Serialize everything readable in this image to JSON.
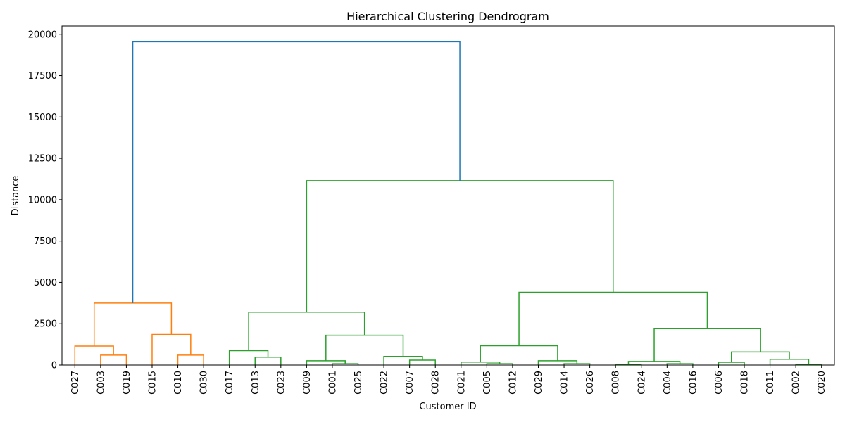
{
  "chart_data": {
    "type": "dendrogram",
    "title": "Hierarchical Clustering Dendrogram",
    "xlabel": "Customer ID",
    "ylabel": "Distance",
    "ylim": [
      0,
      20500
    ],
    "yticks": [
      0,
      2500,
      5000,
      7500,
      10000,
      12500,
      15000,
      17500,
      20000
    ],
    "grid": false,
    "leaves": [
      "C027",
      "C003",
      "C019",
      "C015",
      "C010",
      "C030",
      "C017",
      "C013",
      "C023",
      "C009",
      "C001",
      "C025",
      "C022",
      "C007",
      "C028",
      "C021",
      "C005",
      "C012",
      "C029",
      "C014",
      "C026",
      "C008",
      "C024",
      "C004",
      "C016",
      "C006",
      "C018",
      "C011",
      "C002",
      "C020"
    ],
    "colors": {
      "root": "#1f77b4",
      "cluster_1": "#ff7f0e",
      "cluster_2": "#2ca02c"
    },
    "links": [
      {
        "id": "m1",
        "left": "C003",
        "right": "C019",
        "height": 600,
        "color": "cluster_1"
      },
      {
        "id": "m2",
        "left": "C027",
        "right": "m1",
        "height": 1150,
        "color": "cluster_1"
      },
      {
        "id": "m3",
        "left": "C010",
        "right": "C030",
        "height": 600,
        "color": "cluster_1"
      },
      {
        "id": "m4",
        "left": "C015",
        "right": "m3",
        "height": 1850,
        "color": "cluster_1"
      },
      {
        "id": "m5",
        "left": "m2",
        "right": "m4",
        "height": 3750,
        "color": "cluster_1"
      },
      {
        "id": "m6",
        "left": "C013",
        "right": "C023",
        "height": 480,
        "color": "cluster_2"
      },
      {
        "id": "m7",
        "left": "C017",
        "right": "m6",
        "height": 870,
        "color": "cluster_2"
      },
      {
        "id": "m8",
        "left": "C001",
        "right": "C025",
        "height": 80,
        "color": "cluster_2"
      },
      {
        "id": "m9",
        "left": "C009",
        "right": "m8",
        "height": 260,
        "color": "cluster_2"
      },
      {
        "id": "m10",
        "left": "C007",
        "right": "C028",
        "height": 300,
        "color": "cluster_2"
      },
      {
        "id": "m11",
        "left": "C022",
        "right": "m10",
        "height": 520,
        "color": "cluster_2"
      },
      {
        "id": "m12",
        "left": "m9",
        "right": "m11",
        "height": 1800,
        "color": "cluster_2"
      },
      {
        "id": "m13",
        "left": "m7",
        "right": "m12",
        "height": 3200,
        "color": "cluster_2"
      },
      {
        "id": "m14",
        "left": "C005",
        "right": "C012",
        "height": 80,
        "color": "cluster_2"
      },
      {
        "id": "m15",
        "left": "C021",
        "right": "m14",
        "height": 180,
        "color": "cluster_2"
      },
      {
        "id": "m16",
        "left": "C014",
        "right": "C026",
        "height": 80,
        "color": "cluster_2"
      },
      {
        "id": "m17",
        "left": "C029",
        "right": "m16",
        "height": 260,
        "color": "cluster_2"
      },
      {
        "id": "m18",
        "left": "m15",
        "right": "m17",
        "height": 1170,
        "color": "cluster_2"
      },
      {
        "id": "m19",
        "left": "C008",
        "right": "C024",
        "height": 40,
        "color": "cluster_2"
      },
      {
        "id": "m20",
        "left": "C004",
        "right": "C016",
        "height": 80,
        "color": "cluster_2"
      },
      {
        "id": "m21",
        "left": "m19",
        "right": "m20",
        "height": 220,
        "color": "cluster_2"
      },
      {
        "id": "m22",
        "left": "C006",
        "right": "C018",
        "height": 170,
        "color": "cluster_2"
      },
      {
        "id": "m23",
        "left": "C002",
        "right": "C020",
        "height": 20,
        "color": "cluster_2"
      },
      {
        "id": "m24",
        "left": "C011",
        "right": "m23",
        "height": 350,
        "color": "cluster_2"
      },
      {
        "id": "m25",
        "left": "m22",
        "right": "m24",
        "height": 790,
        "color": "cluster_2"
      },
      {
        "id": "m26",
        "left": "m21",
        "right": "m25",
        "height": 2200,
        "color": "cluster_2"
      },
      {
        "id": "m27",
        "left": "m18",
        "right": "m26",
        "height": 4400,
        "color": "cluster_2"
      },
      {
        "id": "m28",
        "left": "m13",
        "right": "m27",
        "height": 11150,
        "color": "cluster_2"
      },
      {
        "id": "m29",
        "left": "m5",
        "right": "m28",
        "height": 19550,
        "color": "root"
      }
    ]
  }
}
